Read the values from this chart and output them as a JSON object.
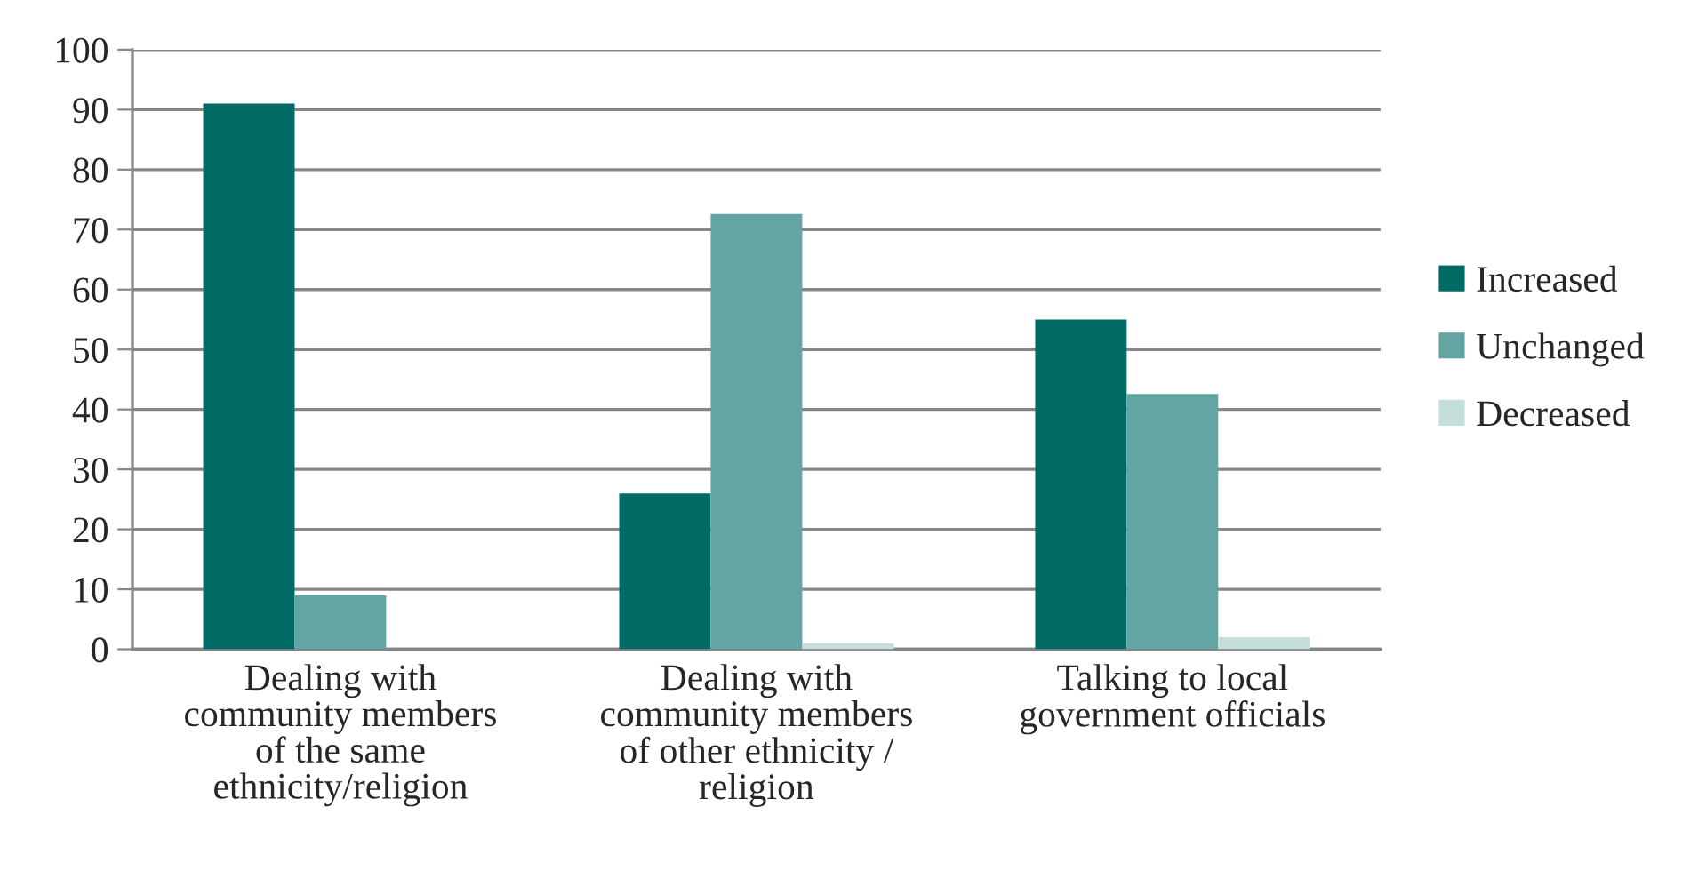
{
  "chart_data": {
    "type": "bar",
    "categories": [
      "Dealing with\ncommunity members\nof the same\nethnicity/religion",
      "Dealing with\ncommunity members\nof other ethnicity /\nreligion",
      "Talking to local\ngovernment officials"
    ],
    "series": [
      {
        "name": "Increased",
        "color": "#006b64",
        "values": [
          91,
          26,
          55
        ]
      },
      {
        "name": "Unchanged",
        "color": "#63a5a2",
        "values": [
          9,
          72.6,
          42.6
        ]
      },
      {
        "name": "Decreased",
        "color": "#c3dedb",
        "values": [
          null,
          1,
          2
        ]
      }
    ],
    "ylim": [
      0,
      100
    ],
    "yticks": [
      0,
      10,
      20,
      30,
      40,
      50,
      60,
      70,
      80,
      90,
      100
    ],
    "grid": "y",
    "legend": "right"
  }
}
